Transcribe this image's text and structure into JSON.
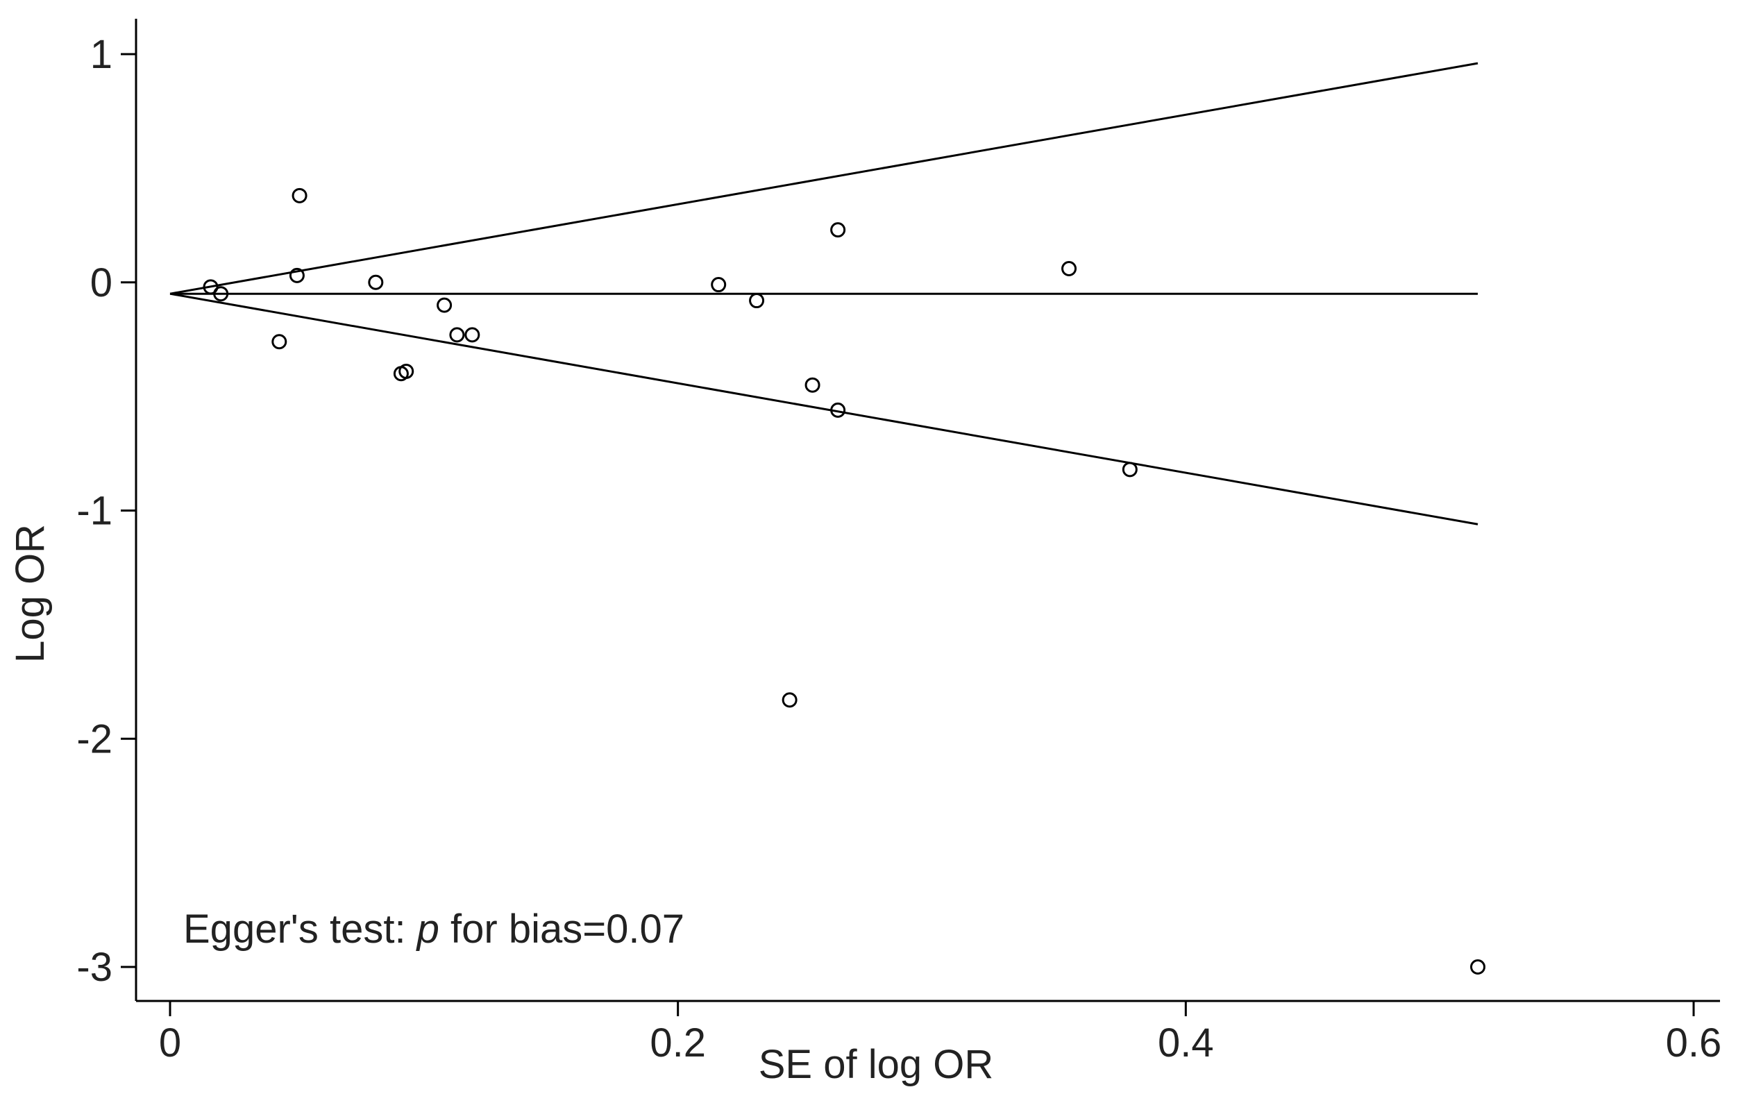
{
  "chart_data": {
    "type": "scatter",
    "title": "",
    "xlabel": "SE of log OR",
    "ylabel": "Log OR",
    "xlim": [
      0,
      0.6
    ],
    "ylim": [
      -3,
      1
    ],
    "x_ticks": [
      0,
      0.2,
      0.4,
      0.6
    ],
    "x_tick_labels": [
      "0",
      "0.2",
      "0.4",
      "0.6"
    ],
    "y_ticks": [
      1,
      0,
      -1,
      -2,
      -3
    ],
    "y_tick_labels": [
      "1",
      "0",
      "-1",
      "-2",
      "-3"
    ],
    "grid": false,
    "legend": "none",
    "pooled_log_or": -0.05,
    "pseudo_ci_lines": {
      "center": [
        [
          0,
          -0.05
        ],
        [
          0.515,
          -0.05
        ]
      ],
      "upper": [
        [
          0,
          -0.05
        ],
        [
          0.515,
          0.96
        ]
      ],
      "lower": [
        [
          0,
          -0.05
        ],
        [
          0.515,
          -1.06
        ]
      ]
    },
    "points": [
      {
        "x": 0.016,
        "y": -0.02
      },
      {
        "x": 0.02,
        "y": -0.05
      },
      {
        "x": 0.05,
        "y": 0.03
      },
      {
        "x": 0.051,
        "y": 0.38
      },
      {
        "x": 0.043,
        "y": -0.26
      },
      {
        "x": 0.081,
        "y": 0.0
      },
      {
        "x": 0.091,
        "y": -0.4
      },
      {
        "x": 0.093,
        "y": -0.39
      },
      {
        "x": 0.108,
        "y": -0.1
      },
      {
        "x": 0.113,
        "y": -0.23
      },
      {
        "x": 0.119,
        "y": -0.23
      },
      {
        "x": 0.216,
        "y": -0.01
      },
      {
        "x": 0.231,
        "y": -0.08
      },
      {
        "x": 0.244,
        "y": -1.83
      },
      {
        "x": 0.253,
        "y": -0.45
      },
      {
        "x": 0.263,
        "y": 0.23
      },
      {
        "x": 0.263,
        "y": -0.56
      },
      {
        "x": 0.354,
        "y": 0.06
      },
      {
        "x": 0.378,
        "y": -0.82
      },
      {
        "x": 0.515,
        "y": -3.0
      }
    ],
    "annotation": {
      "prefix": "Egger's test: ",
      "italic": "p",
      "suffix": " for bias=0.07"
    }
  }
}
